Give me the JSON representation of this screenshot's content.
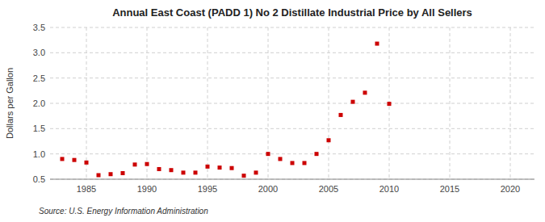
{
  "chart_data": {
    "type": "scatter",
    "title": "Annual East Coast (PADD 1) No 2 Distillate Industrial Price by All Sellers",
    "ylabel": "Dollars per Gallon",
    "source": "Source: U.S. Energy Information Administration",
    "x": [
      1983,
      1984,
      1985,
      1986,
      1987,
      1988,
      1989,
      1990,
      1991,
      1992,
      1993,
      1994,
      1995,
      1996,
      1997,
      1998,
      1999,
      2000,
      2001,
      2002,
      2003,
      2004,
      2005,
      2006,
      2007,
      2008,
      2009,
      2010
    ],
    "values": [
      0.9,
      0.88,
      0.83,
      0.58,
      0.6,
      0.62,
      0.79,
      0.8,
      0.7,
      0.68,
      0.63,
      0.63,
      0.75,
      0.73,
      0.72,
      0.57,
      0.63,
      1.0,
      0.9,
      0.82,
      0.82,
      1.0,
      1.27,
      1.77,
      2.03,
      2.21,
      3.18,
      1.99
    ],
    "color": "#cc0000",
    "marker": "square",
    "xlim": [
      1982,
      2022
    ],
    "ylim": [
      0.5,
      3.5
    ],
    "xticks": [
      1985,
      1990,
      1995,
      2000,
      2005,
      2010,
      2015,
      2020
    ],
    "yticks": [
      0.5,
      {
        "value": 1.0,
        "label": "1.0"
      },
      1.5,
      {
        "value": 2.0,
        "label": "2.0"
      },
      2.5,
      {
        "value": 3.0,
        "label": "3.0"
      },
      3.5
    ],
    "grid": true
  }
}
